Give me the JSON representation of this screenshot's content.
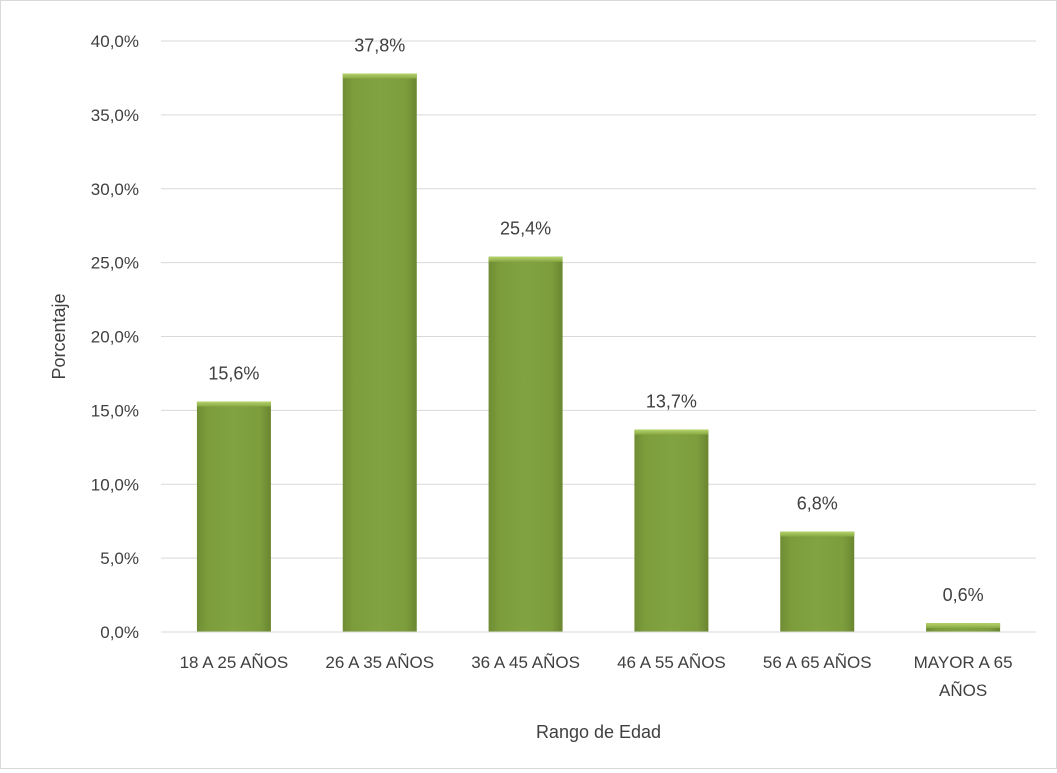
{
  "chart_data": {
    "type": "bar",
    "title": "",
    "xlabel": "Rango de Edad",
    "ylabel": "Porcentaje",
    "categories": [
      "18 A 25 AÑOS",
      "26 A 35 AÑOS",
      "36 A 45 AÑOS",
      "46 A 55 AÑOS",
      "56 A 65 AÑOS",
      "MAYOR A 65 AÑOS"
    ],
    "values": [
      15.6,
      37.8,
      25.4,
      13.7,
      6.8,
      0.6
    ],
    "value_labels": [
      "15,6%",
      "37,8%",
      "25,4%",
      "13,7%",
      "6,8%",
      "0,6%"
    ],
    "ylim": [
      0,
      40
    ],
    "yticks": [
      0,
      5,
      10,
      15,
      20,
      25,
      30,
      35,
      40
    ],
    "ytick_labels": [
      "0,0%",
      "5,0%",
      "10,0%",
      "15,0%",
      "20,0%",
      "25,0%",
      "30,0%",
      "35,0%",
      "40,0%"
    ],
    "grid": true,
    "legend": "none",
    "colors": {
      "bar": "#7a9a3a",
      "bar_highlight": "#a3c35c",
      "bar_shadow": "#5f7a2a",
      "gridline": "#d9d9d9",
      "text": "#404040"
    }
  }
}
